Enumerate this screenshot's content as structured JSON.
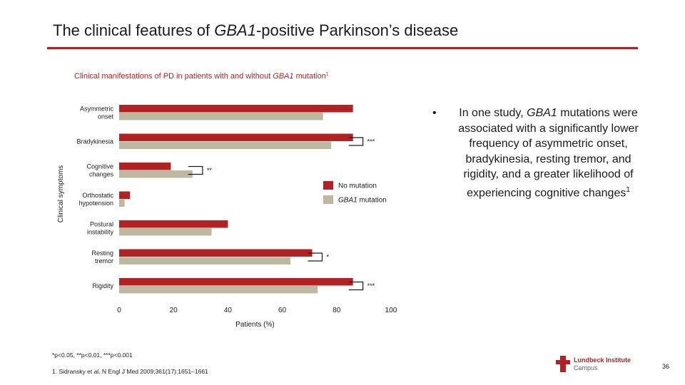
{
  "slide": {
    "title_pre": "The clinical features of ",
    "title_gene": "GBA1",
    "title_post": "-positive Parkinson’s disease",
    "chart_title_pre": "Clinical manifestations of PD in patients with and without ",
    "chart_title_gene": "GBA1",
    "chart_title_post": " mutation",
    "chart_title_ref": "1",
    "bullet_pre": "In one study, ",
    "bullet_gene": "GBA1",
    "bullet_post": " mutations were associated with a significantly lower frequency of asymmetric onset, bradykinesia, resting tremor, and rigidity, and a greater likelihood of experiencing cognitive changes",
    "bullet_ref": "1",
    "footnote": "*p<0.05, **p<0.01, ***p<0.001",
    "reference": "1. Sidransky et al. N Engl J Med 2009;361(17):1651–1661",
    "logo_line1": "Lundbeck Institute",
    "logo_line2": "Campus",
    "page_number": "36"
  },
  "chart_data": {
    "type": "bar",
    "orientation": "horizontal",
    "categories": [
      [
        "Asymmetric",
        "onset"
      ],
      [
        "Bradykinesia"
      ],
      [
        "Cognitive",
        "changes"
      ],
      [
        "Orthostatic",
        "hypotension"
      ],
      [
        "Postural",
        "instability"
      ],
      [
        "Resting",
        "tremor"
      ],
      [
        "Rigidity"
      ]
    ],
    "series": [
      {
        "name": "No mutation",
        "color": "#b22222",
        "values": [
          86,
          86,
          19,
          4,
          40,
          71,
          86
        ]
      },
      {
        "name": "GBA1 mutation",
        "color": "#bfb8a0",
        "values": [
          75,
          78,
          27,
          2,
          34,
          63,
          73
        ]
      }
    ],
    "significance": [
      {
        "category_index": 1,
        "label": "***"
      },
      {
        "category_index": 2,
        "label": "**"
      },
      {
        "category_index": 5,
        "label": "*"
      },
      {
        "category_index": 6,
        "label": "***"
      }
    ],
    "xlabel": "Patients (%)",
    "ylabel": "Clinical symptoms",
    "xlim": [
      0,
      100
    ],
    "xticks": [
      0,
      20,
      40,
      60,
      80,
      100
    ],
    "legend": {
      "placement": "center-right",
      "entries": [
        {
          "label": "No mutation",
          "color": "#b22222",
          "italic": false
        },
        {
          "label": "GBA1",
          "suffix": " mutation",
          "color": "#bfb8a0",
          "italic": true
        }
      ]
    },
    "grid": false
  }
}
